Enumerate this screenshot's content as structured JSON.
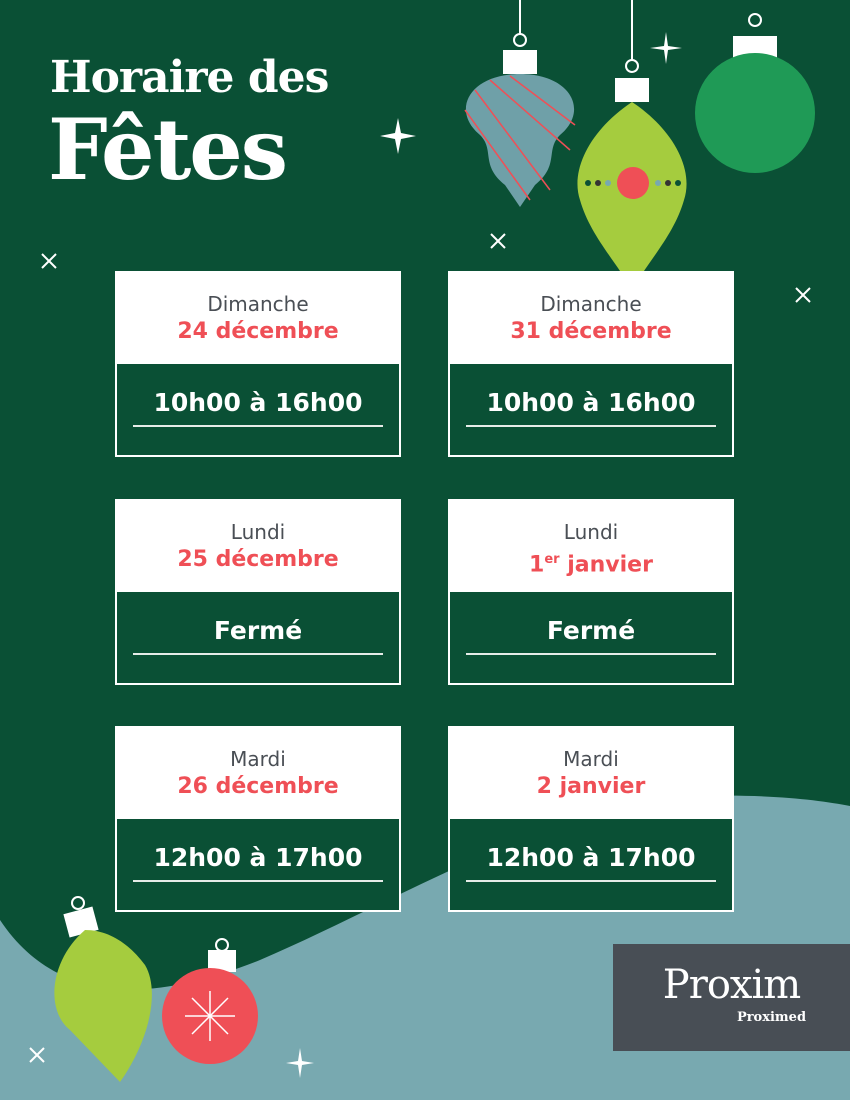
{
  "header": {
    "title_line1": "Horaire des",
    "title_line2": "Fêtes"
  },
  "schedule": [
    {
      "day": "Dimanche",
      "date": "24 décembre",
      "hours": "10h00 à 16h00"
    },
    {
      "day": "Dimanche",
      "date": "31 décembre",
      "hours": "10h00 à 16h00"
    },
    {
      "day": "Lundi",
      "date": "25 décembre",
      "hours": "Fermé"
    },
    {
      "day": "Lundi",
      "date_num": "1",
      "date_sup": "er",
      "date_rest": " janvier",
      "hours": "Fermé"
    },
    {
      "day": "Mardi",
      "date": "26 décembre",
      "hours": "12h00 à 17h00"
    },
    {
      "day": "Mardi",
      "date": "2 janvier",
      "hours": "12h00 à 17h00"
    }
  ],
  "logo": {
    "brand": "Proxim",
    "sub_brand": "Proximed"
  },
  "colors": {
    "dark_green": "#0a5035",
    "teal": "#78a9b0",
    "red": "#ef4f56",
    "lime": "#a5cc3e",
    "logo_bg": "#484e55"
  }
}
